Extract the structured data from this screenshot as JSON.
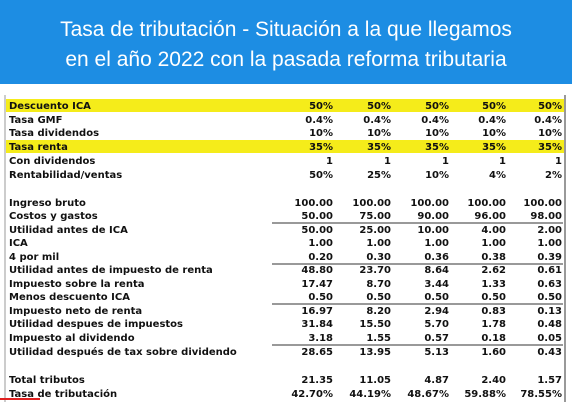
{
  "header": {
    "title": [
      "Tasa de tributación - Situación a la que llegamos",
      "en el año 2022 con la pasada reforma tributaria"
    ]
  },
  "table": {
    "rows": [
      [
        "Descuento ICA",
        "50%",
        "50%",
        "50%",
        "50%",
        "50%"
      ],
      [
        "Tasa GMF",
        "0.4%",
        "0.4%",
        "0.4%",
        "0.4%",
        "0.4%"
      ],
      [
        "Tasa dividendos",
        "10%",
        "10%",
        "10%",
        "10%",
        "10%"
      ],
      [
        "Tasa renta",
        "35%",
        "35%",
        "35%",
        "35%",
        "35%"
      ],
      [
        "Con dividendos",
        "1",
        "1",
        "1",
        "1",
        "1"
      ],
      [
        "Rentabilidad/ventas",
        "50%",
        "25%",
        "10%",
        "4%",
        "2%"
      ],
      [
        "Ingreso bruto",
        "100.00",
        "100.00",
        "100.00",
        "100.00",
        "100.00"
      ],
      [
        "Costos y gastos",
        "50.00",
        "75.00",
        "90.00",
        "96.00",
        "98.00"
      ],
      [
        "Utilidad antes de ICA",
        "50.00",
        "25.00",
        "10.00",
        "4.00",
        "2.00"
      ],
      [
        "ICA",
        "1.00",
        "1.00",
        "1.00",
        "1.00",
        "1.00"
      ],
      [
        "4 por mil",
        "0.20",
        "0.30",
        "0.36",
        "0.38",
        "0.39"
      ],
      [
        "Utilidad antes de impuesto de renta",
        "48.80",
        "23.70",
        "8.64",
        "2.62",
        "0.61"
      ],
      [
        "Impuesto sobre la renta",
        "17.47",
        "8.70",
        "3.44",
        "1.33",
        "0.63"
      ],
      [
        "Menos descuento ICA",
        "0.50",
        "0.50",
        "0.50",
        "0.50",
        "0.50"
      ],
      [
        "Impuesto neto de renta",
        "16.97",
        "8.20",
        "2.94",
        "0.83",
        "0.13"
      ],
      [
        "Utilidad despues de impuestos",
        "31.84",
        "15.50",
        "5.70",
        "1.78",
        "0.48"
      ],
      [
        "Impuesto al dividendo",
        "3.18",
        "1.55",
        "0.57",
        "0.18",
        "0.05"
      ],
      [
        "Utilidad después de tax sobre dividendo",
        "28.65",
        "13.95",
        "5.13",
        "1.60",
        "0.43"
      ],
      [
        "Total tributos",
        "21.35",
        "11.05",
        "4.87",
        "2.40",
        "1.57"
      ],
      [
        "Tasa de tributación",
        "42.70%",
        "44.19%",
        "48.67%",
        "59.88%",
        "78.55%"
      ]
    ]
  }
}
